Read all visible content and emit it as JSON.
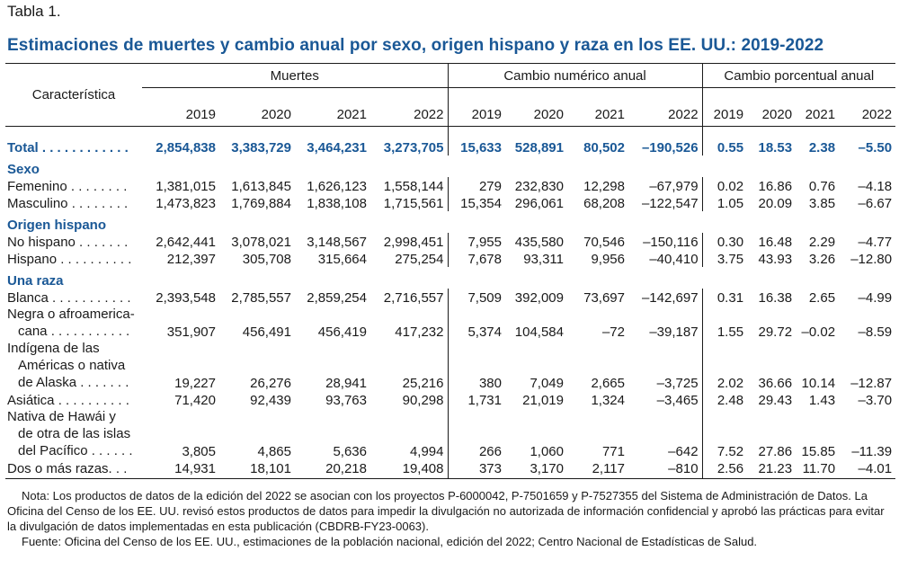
{
  "label": "Tabla 1.",
  "title": "Estimaciones de muertes y cambio anual por sexo, origen hispano y raza en los EE. UU.: 2019-2022",
  "header": {
    "characteristic": "Característica",
    "groups": [
      "Muertes",
      "Cambio numérico anual",
      "Cambio porcentual anual"
    ],
    "years": [
      "2019",
      "2020",
      "2021",
      "2022",
      "2019",
      "2020",
      "2021",
      "2022",
      "2019",
      "2020",
      "2021",
      "2022"
    ]
  },
  "rows": {
    "total": {
      "label": "Total",
      "leaders": " . . . . . . . . . . . .",
      "values": [
        "2,854,838",
        "3,383,729",
        "3,464,231",
        "3,273,705",
        "15,633",
        "528,891",
        "80,502",
        "–190,526",
        "0.55",
        "18.53",
        "2.38",
        "–5.50"
      ]
    },
    "sexo": {
      "label": "Sexo"
    },
    "femenino": {
      "label": "Femenino . . . . . . . .",
      "values": [
        "1,381,015",
        "1,613,845",
        "1,626,123",
        "1,558,144",
        "279",
        "232,830",
        "12,298",
        "–67,979",
        "0.02",
        "16.86",
        "0.76",
        "–4.18"
      ]
    },
    "masculino": {
      "label": "Masculino . . . . . . . .",
      "values": [
        "1,473,823",
        "1,769,884",
        "1,838,108",
        "1,715,561",
        "15,354",
        "296,061",
        "68,208",
        "–122,547",
        "1.05",
        "20.09",
        "3.85",
        "–6.67"
      ]
    },
    "origen": {
      "label": "Origen hispano"
    },
    "no_hispano": {
      "label": "No hispano . . . . . . .",
      "values": [
        "2,642,441",
        "3,078,021",
        "3,148,567",
        "2,998,451",
        "7,955",
        "435,580",
        "70,546",
        "–150,116",
        "0.30",
        "16.48",
        "2.29",
        "–4.77"
      ]
    },
    "hispano": {
      "label": "Hispano . . . . . . . . . .",
      "values": [
        "212,397",
        "305,708",
        "315,664",
        "275,254",
        "7,678",
        "93,311",
        "9,956",
        "–40,410",
        "3.75",
        "43.93",
        "3.26",
        "–12.80"
      ]
    },
    "una_raza": {
      "label": "Una raza"
    },
    "blanca": {
      "label": "Blanca . . . . . . . . . . .",
      "values": [
        "2,393,548",
        "2,785,557",
        "2,859,254",
        "2,716,557",
        "7,509",
        "392,009",
        "73,697",
        "–142,697",
        "0.31",
        "16.38",
        "2.65",
        "–4.99"
      ]
    },
    "negra": {
      "label_l1": "Negra o afroamerica-",
      "label_l2": "cana . . . . . . . . . . .",
      "values": [
        "351,907",
        "456,491",
        "456,419",
        "417,232",
        "5,374",
        "104,584",
        "–72",
        "–39,187",
        "1.55",
        "29.72",
        "–0.02",
        "–8.59"
      ]
    },
    "indigena": {
      "label_l1": "Indígena de las",
      "label_l2": "Américas o nativa",
      "label_l3": "de Alaska . . . . . . .",
      "values": [
        "19,227",
        "26,276",
        "28,941",
        "25,216",
        "380",
        "7,049",
        "2,665",
        "–3,725",
        "2.02",
        "36.66",
        "10.14",
        "–12.87"
      ]
    },
    "asiatica": {
      "label": "Asiática . . . . . . . . . .",
      "values": [
        "71,420",
        "92,439",
        "93,763",
        "90,298",
        "1,731",
        "21,019",
        "1,324",
        "–3,465",
        "2.48",
        "29.43",
        "1.43",
        "–3.70"
      ]
    },
    "hawai": {
      "label_l1": "Nativa de Hawái y",
      "label_l2": "de otra de las islas",
      "label_l3": "del Pacífico . . . . . .",
      "values": [
        "3,805",
        "4,865",
        "5,636",
        "4,994",
        "266",
        "1,060",
        "771",
        "–642",
        "7.52",
        "27.86",
        "15.85",
        "–11.39"
      ]
    },
    "dos_o_mas": {
      "label": "Dos o más razas. . .",
      "values": [
        "14,931",
        "18,101",
        "20,218",
        "19,408",
        "373",
        "3,170",
        "2,117",
        "–810",
        "2.56",
        "21.23",
        "11.70",
        "–4.01"
      ]
    }
  },
  "notes": {
    "nota": "Nota: Los productos de datos de la edición del 2022 se asocian con los proyectos P-6000042, P-7501659 y P-7527355 del Sistema de Administración de Datos. La Oficina del Censo de los EE. UU. revisó estos productos de datos para impedir la divulgación no autorizada de información confidencial y aprobó las prácticas para evitar la divulgación de datos implementadas en esta publicación (CBDRB-FY23-0063).",
    "fuente": "Fuente: Oficina del Censo de los EE. UU., estimaciones de la población nacional, edición del 2022; Centro Nacional de Estadísticas de Salud."
  },
  "colors": {
    "accent": "#1a5896",
    "text": "#1a1a1a",
    "rule": "#1a1a1a"
  }
}
